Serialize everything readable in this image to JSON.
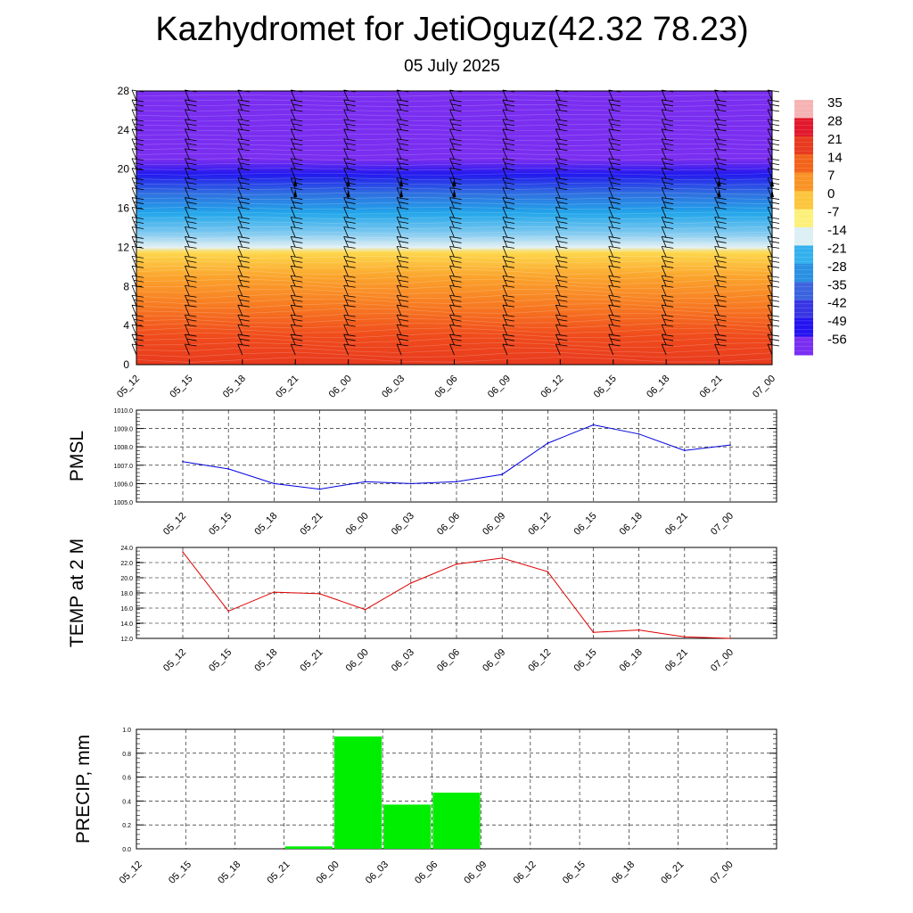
{
  "header": {
    "title": "Kazhydromet for JetiOguz(42.32 78.23)",
    "subtitle": "05 July 2025"
  },
  "chart_data": [
    {
      "type": "heatmap",
      "title": "",
      "xlabel": "",
      "ylabel": "",
      "x_ticks": [
        "05_12",
        "05_15",
        "05_18",
        "05_21",
        "06_00",
        "06_03",
        "06_06",
        "06_09",
        "06_12",
        "06_15",
        "06_18",
        "06_21",
        "07_00"
      ],
      "y_ticks": [
        0,
        4,
        8,
        12,
        16,
        20,
        24,
        28
      ],
      "ylim": [
        0,
        28
      ],
      "colorbar": {
        "labels": [
          "35",
          "28",
          "21",
          "14",
          "7",
          "0",
          "-7",
          "-14",
          "-21",
          "-28",
          "-35",
          "-42",
          "-49",
          "-56"
        ],
        "colors": [
          "#f6b3b3",
          "#e2182d",
          "#e83a1e",
          "#f2641a",
          "#f99325",
          "#fcc53c",
          "#fdf07a",
          "#dceff4",
          "#33b0ee",
          "#2a90e2",
          "#3c63df",
          "#3835e4",
          "#2413f1",
          "#7a2ef0"
        ]
      },
      "field": {
        "layers": [
          {
            "top": 0,
            "color": "#e83a1e"
          },
          {
            "top": 3,
            "color": "#f04c1c"
          },
          {
            "top": 6,
            "color": "#f77a22"
          },
          {
            "top": 9,
            "color": "#fba42d"
          },
          {
            "top": 11.5,
            "color": "#fdd84c"
          },
          {
            "top": 12,
            "color": "#e4f1f4"
          },
          {
            "top": 13.5,
            "color": "#7cc8f0"
          },
          {
            "top": 15.5,
            "color": "#22a6ea"
          },
          {
            "top": 17.5,
            "color": "#2f6fe0"
          },
          {
            "top": 19.5,
            "color": "#2218ee"
          },
          {
            "top": 21,
            "color": "#7a2ef0"
          },
          {
            "top": 28,
            "color": "#7a2ef0"
          }
        ]
      },
      "wind_barb_levels": [
        1,
        2,
        3,
        4,
        5,
        6,
        7,
        8,
        9,
        10,
        11,
        12,
        13,
        14,
        15,
        16,
        17,
        18,
        19,
        20,
        21,
        22,
        23,
        24,
        25,
        26,
        27
      ]
    },
    {
      "type": "line",
      "ylabel": "PMSL",
      "x": [
        "05_12",
        "05_15",
        "05_18",
        "05_21",
        "06_00",
        "06_03",
        "06_06",
        "06_09",
        "06_12",
        "06_15",
        "06_18",
        "06_21",
        "07_00"
      ],
      "series": [
        {
          "values": [
            1007.2,
            1006.8,
            1006.0,
            1005.7,
            1006.1,
            1006.0,
            1006.1,
            1006.5,
            1008.2,
            1009.2,
            1008.7,
            1007.8,
            1008.1
          ],
          "color": "#0000dd"
        }
      ],
      "ylim": [
        1005.0,
        1010.0
      ],
      "y_ticks": [
        "1005.0",
        "1006.0",
        "1007.0",
        "1008.0",
        "1009.0",
        "1010.0"
      ],
      "grid": true
    },
    {
      "type": "line",
      "ylabel": "TEMP at 2 M",
      "x": [
        "05_12",
        "05_15",
        "05_18",
        "05_21",
        "06_00",
        "06_03",
        "06_06",
        "06_09",
        "06_12",
        "06_15",
        "06_18",
        "06_21",
        "07_00"
      ],
      "series": [
        {
          "values": [
            23.4,
            15.6,
            18.1,
            17.9,
            15.8,
            19.3,
            21.8,
            22.6,
            20.8,
            12.8,
            13.1,
            12.2,
            12.0
          ],
          "color": "#dd0000"
        }
      ],
      "ylim": [
        12.0,
        24.0
      ],
      "y_ticks": [
        "12.0",
        "14.0",
        "16.0",
        "18.0",
        "20.0",
        "22.0",
        "24.0"
      ],
      "grid": true
    },
    {
      "type": "bar",
      "ylabel": "PRECIP, mm",
      "categories": [
        "05_12",
        "05_15",
        "05_18",
        "05_21",
        "06_00",
        "06_03",
        "06_06",
        "06_09",
        "06_12",
        "06_15",
        "06_18",
        "06_21",
        "07_00"
      ],
      "values": [
        0,
        0,
        0,
        0.02,
        0.94,
        0.37,
        0.47,
        0,
        0,
        0,
        0,
        0,
        0
      ],
      "ylim": [
        0.0,
        1.0
      ],
      "y_ticks": [
        "0.0",
        "0.2",
        "0.4",
        "0.6",
        "0.8",
        "1.0"
      ],
      "bar_color": "#00ee00",
      "grid": true
    }
  ]
}
